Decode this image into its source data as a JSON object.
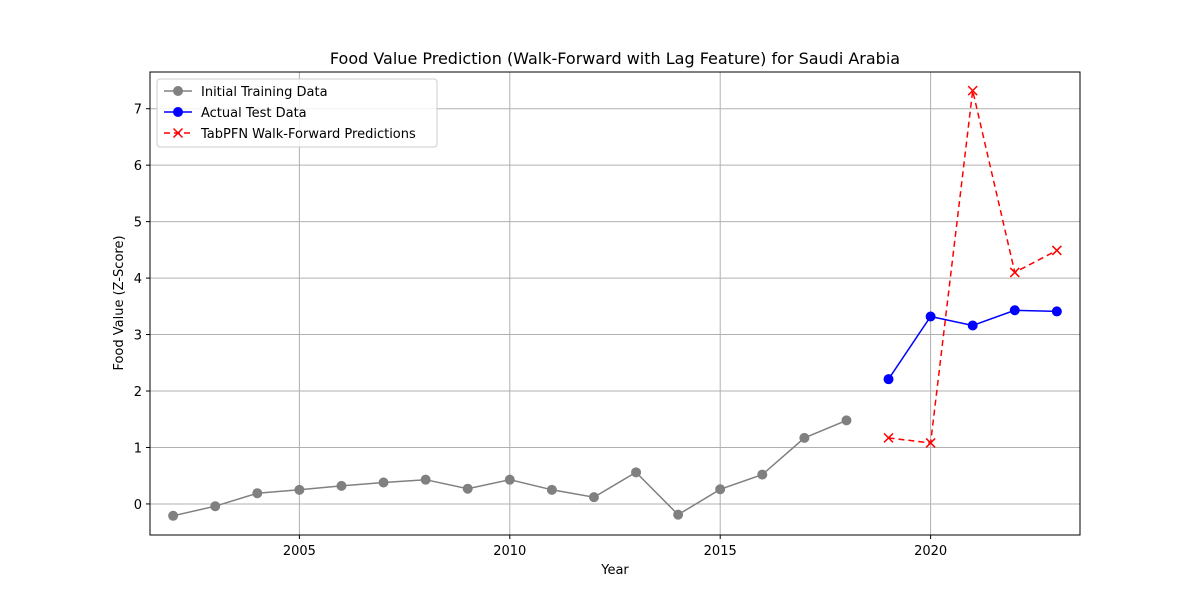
{
  "chart_data": {
    "type": "line",
    "title": "Food Value Prediction (Walk-Forward with Lag Feature) for Saudi Arabia",
    "xlabel": "Year",
    "ylabel": "Food Value (Z-Score)",
    "xlim": [
      2001.45,
      2023.55
    ],
    "ylim": [
      -0.55,
      7.65
    ],
    "xticks": [
      2005,
      2010,
      2015,
      2020
    ],
    "yticks": [
      0,
      1,
      2,
      3,
      4,
      5,
      6,
      7
    ],
    "grid": true,
    "legend_position": "top-left",
    "series": [
      {
        "name": "Initial Training Data",
        "color": "#808080",
        "marker": "circle",
        "linestyle": "solid",
        "x": [
          2002,
          2003,
          2004,
          2005,
          2006,
          2007,
          2008,
          2009,
          2010,
          2011,
          2012,
          2013,
          2014,
          2015,
          2016,
          2017,
          2018
        ],
        "y": [
          -0.21,
          -0.04,
          0.19,
          0.25,
          0.32,
          0.38,
          0.43,
          0.27,
          0.43,
          0.25,
          0.12,
          0.56,
          -0.19,
          0.26,
          0.52,
          1.17,
          1.48
        ]
      },
      {
        "name": "Actual Test Data",
        "color": "#0000ff",
        "marker": "circle",
        "linestyle": "solid",
        "x": [
          2019,
          2020,
          2021,
          2022,
          2023
        ],
        "y": [
          2.21,
          3.32,
          3.16,
          3.43,
          3.41
        ]
      },
      {
        "name": "TabPFN Walk-Forward Predictions",
        "color": "#ff0000",
        "marker": "x",
        "linestyle": "dashed",
        "x": [
          2019,
          2020,
          2021,
          2022,
          2023
        ],
        "y": [
          1.17,
          1.08,
          7.32,
          4.1,
          4.49
        ]
      }
    ]
  }
}
